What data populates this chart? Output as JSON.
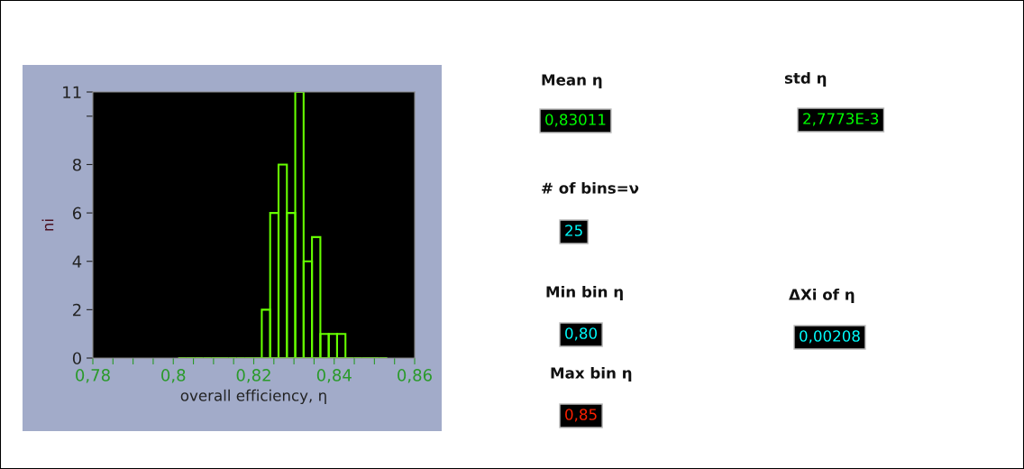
{
  "chart_data": [
    {
      "type": "histogram",
      "xlabel": "overall efficiency, η",
      "ylabel": "ni",
      "color": "#66ff00",
      "bins": [
        0.8012,
        0.80328,
        0.80536,
        0.80744,
        0.80952,
        0.8116,
        0.81368,
        0.81576,
        0.81784,
        0.81992,
        0.822,
        0.82408,
        0.82616,
        0.82824,
        0.83032,
        0.8324,
        0.83448,
        0.83656,
        0.83864,
        0.84072,
        0.8428,
        0.84488,
        0.84696,
        0.84904,
        0.85112,
        0.8532
      ],
      "values": [
        0,
        0,
        0,
        0,
        0,
        0,
        0,
        0,
        0,
        0,
        2,
        6,
        8,
        6,
        11,
        4,
        5,
        1,
        1,
        1,
        0,
        0,
        0,
        0,
        0
      ],
      "xlim": [
        0.78,
        0.86
      ],
      "xticks": [
        {
          "value": 0.78,
          "label": "0,78"
        },
        {
          "value": 0.785,
          "label": null
        },
        {
          "value": 0.79,
          "label": null
        },
        {
          "value": 0.795,
          "label": null
        },
        {
          "value": 0.8,
          "label": "0,8"
        },
        {
          "value": 0.805,
          "label": null
        },
        {
          "value": 0.81,
          "label": null
        },
        {
          "value": 0.815,
          "label": null
        },
        {
          "value": 0.82,
          "label": "0,82"
        },
        {
          "value": 0.825,
          "label": null
        },
        {
          "value": 0.83,
          "label": null
        },
        {
          "value": 0.835,
          "label": null
        },
        {
          "value": 0.84,
          "label": "0,84"
        },
        {
          "value": 0.845,
          "label": null
        },
        {
          "value": 0.85,
          "label": null
        },
        {
          "value": 0.855,
          "label": null
        },
        {
          "value": 0.86,
          "label": "0,86"
        }
      ],
      "ylim": [
        0,
        11
      ],
      "yticks": [
        0,
        2,
        4,
        6,
        8,
        {
          "value": 10,
          "label": null
        },
        11
      ],
      "grid": false,
      "legend": false
    },
    {
      "type": "other",
      "annotations": [
        "Mean η",
        "0,83011",
        "std η",
        "2,7773E-3",
        "# of bins=ν",
        "25",
        "Min bin η",
        "0,80",
        "ΔXi of η",
        "0,00208",
        "Max bin η",
        "0,85"
      ],
      "colors": [
        null,
        "#00ff00",
        null,
        "#00ff00",
        null,
        "#00ffff",
        null,
        "#00ffff",
        null,
        "#00ffff",
        null,
        "#ff2000"
      ]
    }
  ]
}
